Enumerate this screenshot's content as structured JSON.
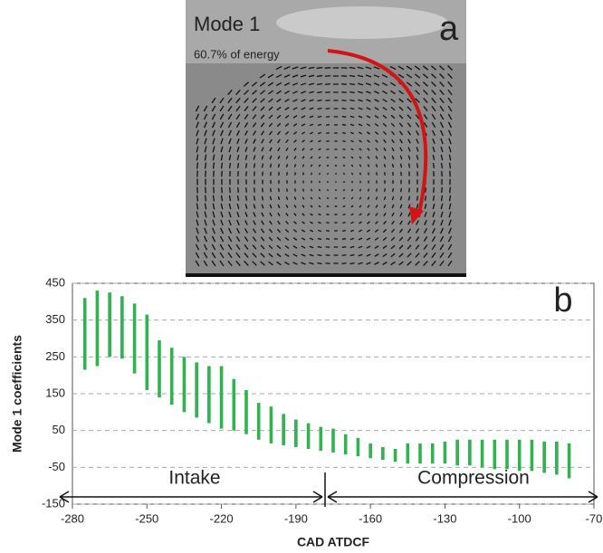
{
  "panel_a": {
    "title": "Mode 1",
    "subtitle": "60.7% of energy",
    "label": "a"
  },
  "chart_data": {
    "type": "range",
    "label": "b",
    "x_label": "CAD ATDCF",
    "y_label": "Mode 1 coefficients",
    "annotations": [
      "Intake",
      "Compression"
    ],
    "color": "#2eb34e",
    "x": [
      -275,
      -270,
      -265,
      -260,
      -255,
      -250,
      -245,
      -240,
      -235,
      -230,
      -225,
      -220,
      -215,
      -210,
      -205,
      -200,
      -195,
      -190,
      -185,
      -180,
      -175,
      -170,
      -165,
      -160,
      -155,
      -150,
      -145,
      -140,
      -135,
      -130,
      -125,
      -120,
      -115,
      -110,
      -105,
      -100,
      -95,
      -90,
      -85,
      -80
    ],
    "low": [
      215,
      225,
      250,
      245,
      205,
      160,
      140,
      120,
      100,
      85,
      70,
      55,
      50,
      40,
      25,
      15,
      10,
      5,
      0,
      -5,
      -10,
      -15,
      -20,
      -25,
      -30,
      -35,
      -40,
      -40,
      -40,
      -40,
      -45,
      -45,
      -50,
      -55,
      -55,
      -60,
      -60,
      -65,
      -70,
      -80
    ],
    "high": [
      410,
      430,
      425,
      415,
      395,
      365,
      295,
      275,
      250,
      235,
      225,
      225,
      190,
      160,
      125,
      115,
      95,
      80,
      70,
      60,
      55,
      40,
      30,
      15,
      5,
      0,
      15,
      15,
      15,
      20,
      25,
      25,
      25,
      25,
      25,
      25,
      25,
      20,
      20,
      15
    ],
    "xlim": [
      -280,
      -70
    ],
    "xticks": [
      -280,
      -250,
      -220,
      -190,
      -160,
      -130,
      -100,
      -70
    ],
    "ylim": [
      -150,
      450
    ],
    "yticks": [
      -150,
      -50,
      50,
      150,
      250,
      350,
      450
    ],
    "grid": true
  }
}
